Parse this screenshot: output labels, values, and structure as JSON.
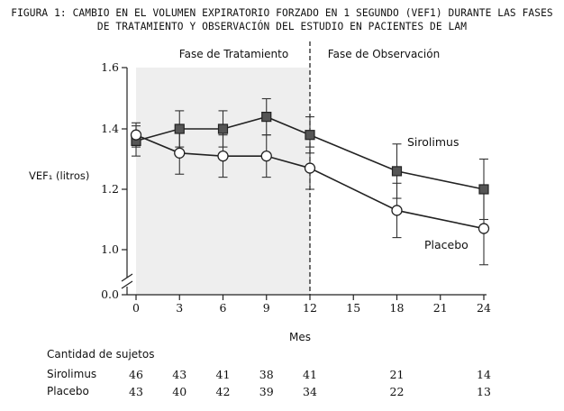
{
  "title_line1": "FIGURA 1: CAMBIO EN EL VOLUMEN EXPIRATORIO FORZADO EN 1 SEGUNDO (VEF1) DURANTE LAS FASES",
  "title_line2": "DE TRATAMIENTO Y OBSERVACIÓN DEL ESTUDIO EN PACIENTES DE LAM",
  "chart_data": {
    "type": "line",
    "xlabel": "Mes",
    "ylabel": "VEF₁ (litros)",
    "x_ticks": [
      0,
      3,
      6,
      9,
      12,
      15,
      18,
      21,
      24
    ],
    "y_ticks": [
      "0.0",
      "1.0",
      "1.2",
      "1.4",
      "1.6"
    ],
    "y_axis_break": true,
    "xlim": [
      0,
      24
    ],
    "ylim": [
      0.86,
      1.6
    ],
    "phase_labels": [
      "Fase de Tratamiento",
      "Fase de Observación"
    ],
    "phase_divider_x": 12,
    "grid": false,
    "series": [
      {
        "name": "Sirolimus",
        "marker": "square",
        "color": "#555555",
        "x": [
          0,
          3,
          6,
          9,
          12,
          18,
          24
        ],
        "y": [
          1.36,
          1.4,
          1.4,
          1.44,
          1.38,
          1.26,
          1.2
        ],
        "err": [
          0.05,
          0.06,
          0.06,
          0.06,
          0.06,
          0.09,
          0.1
        ]
      },
      {
        "name": "Placebo",
        "marker": "circle",
        "color": "#ffffff",
        "x": [
          0,
          3,
          6,
          9,
          12,
          18,
          24
        ],
        "y": [
          1.38,
          1.32,
          1.31,
          1.31,
          1.27,
          1.13,
          1.07
        ],
        "err": [
          0.04,
          0.07,
          0.07,
          0.07,
          0.07,
          0.09,
          0.12
        ]
      }
    ]
  },
  "subjects_table": {
    "heading": "Cantidad de sujetos",
    "rows": [
      {
        "label": "Sirolimus",
        "values": [
          "46",
          "43",
          "41",
          "38",
          "41",
          "21",
          "14"
        ]
      },
      {
        "label": "Placebo",
        "values": [
          "43",
          "40",
          "42",
          "39",
          "34",
          "22",
          "13"
        ]
      }
    ]
  }
}
